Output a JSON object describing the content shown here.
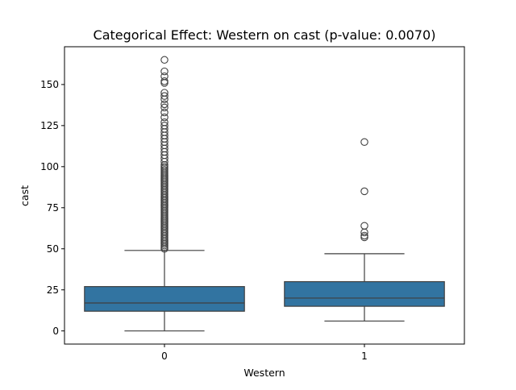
{
  "chart_data": {
    "type": "box",
    "title": "Categorical Effect: Western on cast (p-value: 0.0070)",
    "xlabel": "Western",
    "ylabel": "cast",
    "categories": [
      "0",
      "1"
    ],
    "ylim": [
      -8,
      173
    ],
    "yticks": [
      0,
      25,
      50,
      75,
      100,
      125,
      150
    ],
    "grid": false,
    "box_color": "#3274a1",
    "boxes": [
      {
        "category": "0",
        "whisker_low": 0,
        "q1": 12,
        "median": 17,
        "q3": 27,
        "whisker_high": 49,
        "outliers": [
          50,
          51,
          52,
          53,
          54,
          55,
          56,
          57,
          58,
          59,
          60,
          61,
          62,
          63,
          64,
          65,
          66,
          67,
          68,
          69,
          70,
          71,
          72,
          73,
          74,
          75,
          76,
          77,
          78,
          79,
          80,
          81,
          82,
          83,
          84,
          85,
          86,
          87,
          88,
          89,
          90,
          91,
          92,
          93,
          94,
          95,
          96,
          97,
          98,
          99,
          100,
          101,
          103,
          105,
          107,
          109,
          111,
          113,
          115,
          117,
          119,
          121,
          123,
          125,
          127,
          130,
          133,
          136,
          138,
          141,
          143,
          145,
          151,
          152,
          155,
          158,
          165
        ]
      },
      {
        "category": "1",
        "whisker_low": 6,
        "q1": 15,
        "median": 20,
        "q3": 30,
        "whisker_high": 47,
        "outliers": [
          57,
          58,
          60,
          64,
          85,
          115
        ]
      }
    ]
  }
}
